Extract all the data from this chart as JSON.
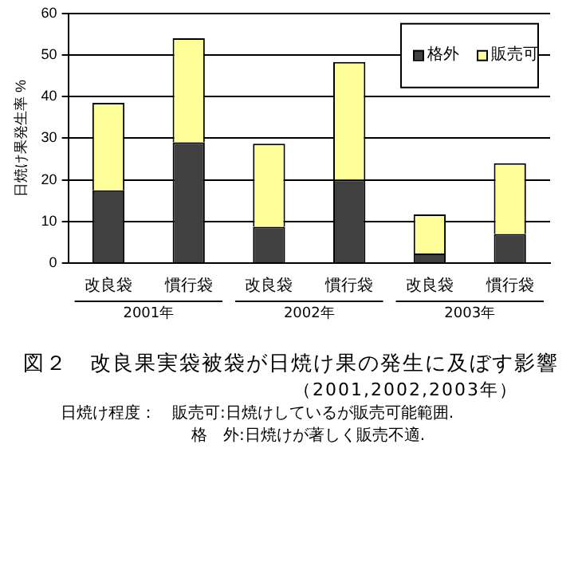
{
  "chart_data": {
    "type": "bar",
    "title": "図２　改良果実袋被袋が日焼け果の発生に及ぼす影響",
    "subtitle": "（2001,2002,2003年）",
    "ylabel": "日焼け果発生率 %",
    "categories": [
      "改良袋",
      "慣行袋",
      "改良袋",
      "慣行袋",
      "改良袋",
      "慣行袋"
    ],
    "series": [
      {
        "name": "格外",
        "color": "#404040",
        "values": [
          17.5,
          29,
          8.7,
          20,
          2.3,
          7
        ]
      },
      {
        "name": "販売可",
        "color": "#ffff99",
        "values": [
          21,
          25,
          20,
          28.3,
          9.4,
          17
        ]
      }
    ],
    "stacked": true,
    "ylim": [
      0,
      60
    ],
    "yticks": [
      0,
      10,
      20,
      30,
      40,
      50,
      60
    ],
    "grid": "y",
    "legend": "top right",
    "annotations": [
      "2001年",
      "2002年",
      "2003年",
      "日焼け程度：　販売可:日焼けしているが販売可能範囲.",
      "格　外:日焼けが著しく販売不適."
    ]
  }
}
